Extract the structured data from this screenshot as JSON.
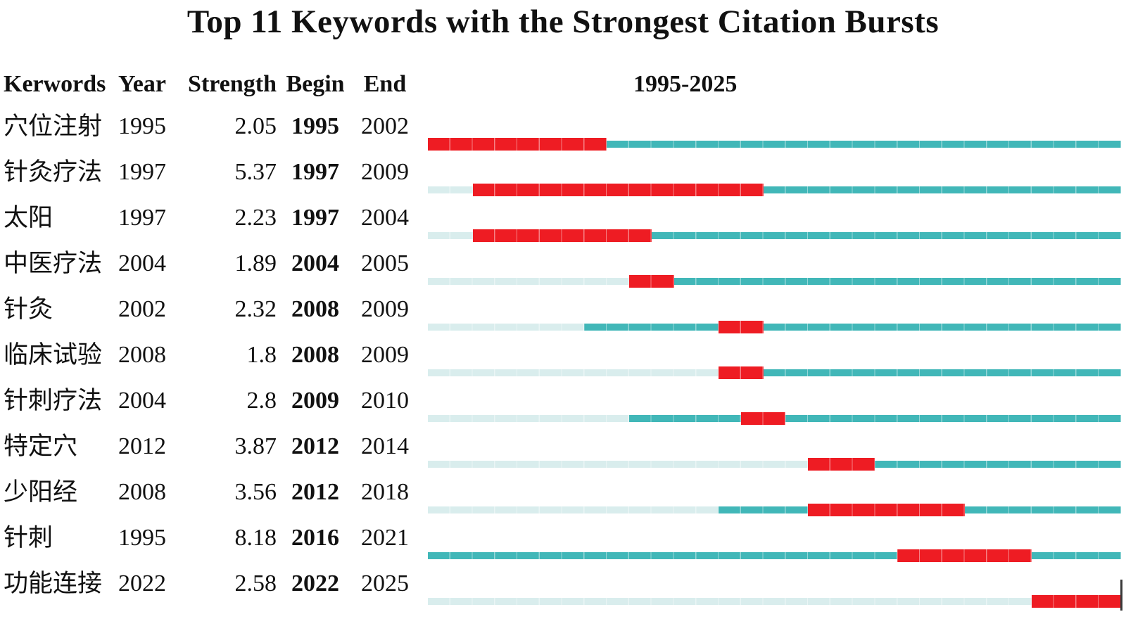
{
  "chart_data": {
    "type": "table",
    "title": "Top 11 Keywords with the Strongest Citation Bursts",
    "timeline_label": "1995-2025",
    "timeline_start": 1995,
    "timeline_end": 2025,
    "columns": [
      "Kerwords",
      "Year",
      "Strength",
      "Begin",
      "End"
    ],
    "rows": [
      {
        "keyword": "穴位注射",
        "year": 1995,
        "strength": "2.05",
        "begin": 1995,
        "end": 2002
      },
      {
        "keyword": "针灸疗法",
        "year": 1997,
        "strength": "5.37",
        "begin": 1997,
        "end": 2009
      },
      {
        "keyword": "太阳",
        "year": 1997,
        "strength": "2.23",
        "begin": 1997,
        "end": 2004
      },
      {
        "keyword": "中医疗法",
        "year": 2004,
        "strength": "1.89",
        "begin": 2004,
        "end": 2005
      },
      {
        "keyword": "针灸",
        "year": 2002,
        "strength": "2.32",
        "begin": 2008,
        "end": 2009
      },
      {
        "keyword": "临床试验",
        "year": 2008,
        "strength": "1.8",
        "begin": 2008,
        "end": 2009
      },
      {
        "keyword": "针刺疗法",
        "year": 2004,
        "strength": "2.8",
        "begin": 2009,
        "end": 2010
      },
      {
        "keyword": "特定穴",
        "year": 2012,
        "strength": "3.87",
        "begin": 2012,
        "end": 2014
      },
      {
        "keyword": "少阳经",
        "year": 2008,
        "strength": "3.56",
        "begin": 2012,
        "end": 2018
      },
      {
        "keyword": "针刺",
        "year": 1995,
        "strength": "8.18",
        "begin": 2016,
        "end": 2021
      },
      {
        "keyword": "功能连接",
        "year": 2022,
        "strength": "2.58",
        "begin": 2022,
        "end": 2025
      }
    ],
    "colors": {
      "burst": "#ee1c23",
      "active": "#41b7b8",
      "inactive": "#d9eded"
    },
    "legend_position": "none",
    "grid": false
  }
}
